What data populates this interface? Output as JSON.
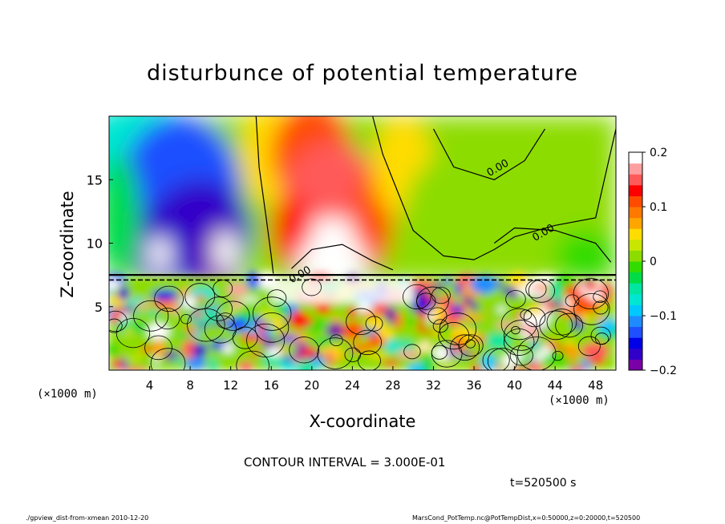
{
  "title": "disturbunce of potential temperature",
  "footer": {
    "left": "./gpview_dist-from-xmean  2010-12-20",
    "right": "MarsCond_PotTemp.nc@PotTempDist,x=0:50000,z=0:20000,t=520500"
  },
  "annotations": {
    "contour_interval": "CONTOUR INTERVAL = 3.000E-01",
    "time": "t=520500 s",
    "x_unit_left": "(×1000 m)",
    "x_unit_right": "(×1000 m)"
  },
  "chart_data": {
    "type": "heatmap",
    "title": "disturbunce of potential temperature",
    "xlabel": "X-coordinate",
    "ylabel": "Z-coordinate",
    "xlim": [
      0,
      50
    ],
    "ylim": [
      0,
      20
    ],
    "x_ticks": [
      4,
      8,
      12,
      16,
      20,
      24,
      28,
      32,
      36,
      40,
      44,
      48
    ],
    "y_ticks": [
      5,
      10,
      15
    ],
    "contour_labels": [
      {
        "text": "0.00",
        "x": 38.5,
        "y": 15.7
      },
      {
        "text": "0.00",
        "x": 43,
        "y": 10.6
      },
      {
        "text": "0.00",
        "x": 19,
        "y": 7.3
      }
    ],
    "colorbar": {
      "range": [
        -0.2,
        0.2
      ],
      "tick_labels": [
        "0.2",
        "0.1",
        "0",
        "−0.1",
        "−0.2"
      ],
      "tick_values": [
        0.2,
        0.1,
        0,
        -0.1,
        -0.2
      ],
      "colors": [
        "#7a00a8",
        "#3100c8",
        "#0000e6",
        "#1e50ff",
        "#1e8cff",
        "#00c8ff",
        "#00e6d2",
        "#00e6a0",
        "#00dc46",
        "#32dc00",
        "#8cdc00",
        "#c8e600",
        "#ffdc00",
        "#ffa500",
        "#ff7800",
        "#ff4b00",
        "#ff0000",
        "#ff5a5a",
        "#ffa0a0",
        "#ffffff"
      ]
    }
  }
}
